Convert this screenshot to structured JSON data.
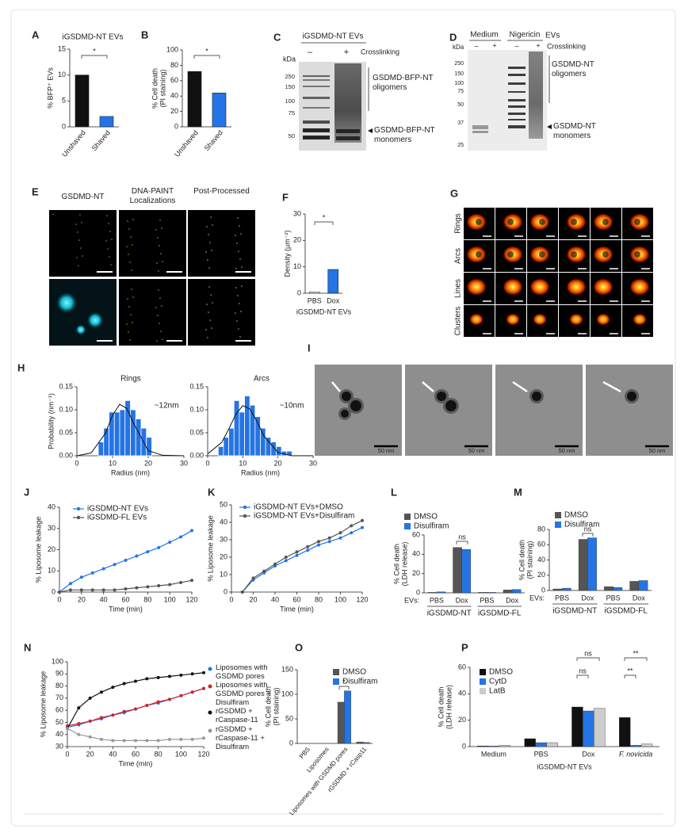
{
  "chart_data": [
    {
      "panel": "A",
      "type": "bar",
      "title": "iGSDMD-NT EVs",
      "ylabel": "% BFP⁺ EVs",
      "categories": [
        "Unshaved",
        "Shaved"
      ],
      "values": [
        10,
        2
      ],
      "colors": [
        "#111111",
        "#2474e5"
      ],
      "ylim": [
        0,
        15
      ],
      "yticks": [
        0,
        5,
        10,
        15
      ],
      "annotations": [
        "*"
      ]
    },
    {
      "panel": "B",
      "type": "bar",
      "ylabel": [
        "% Cell death",
        "(PI staining)"
      ],
      "categories": [
        "Unshaved",
        "Shaved"
      ],
      "values": [
        72,
        44
      ],
      "colors": [
        "#111111",
        "#2474e5"
      ],
      "ylim": [
        0,
        100
      ],
      "yticks": [
        0,
        20,
        40,
        60,
        80,
        100
      ],
      "annotations": [
        "*"
      ]
    },
    {
      "panel": "F",
      "type": "bar",
      "ylabel": "Density (µm⁻²)",
      "xlabel": "iGSDMD-NT EVs",
      "categories": [
        "PBS",
        "Dox"
      ],
      "values": [
        0.5,
        9
      ],
      "colors": [
        "#ffffff",
        "#2474e5"
      ],
      "ylim": [
        0,
        30
      ],
      "yticks": [
        0,
        10,
        20,
        30
      ],
      "annotations": [
        "*"
      ]
    },
    {
      "panel": "H",
      "type": "histogram",
      "title": "Rings",
      "ylabel": "Probability (nm⁻¹)",
      "xlabel": "Radius (nm)",
      "bins": [
        6,
        7.5,
        9,
        10.5,
        12,
        13.5,
        15,
        16.5,
        18,
        19.5,
        21
      ],
      "values": [
        0.03,
        0.06,
        0.095,
        0.095,
        0.1,
        0.12,
        0.1,
        0.08,
        0.06,
        0.04
      ],
      "color": "#2474e5",
      "fit": {
        "x": [
          0,
          4,
          8,
          10,
          12,
          14,
          16,
          20,
          24,
          30
        ],
        "values": [
          0,
          0.006,
          0.049,
          0.088,
          0.112,
          0.103,
          0.069,
          0.011,
          0.001,
          0
        ]
      },
      "xlim": [
        0,
        30
      ],
      "xticks": [
        0,
        10,
        20,
        30
      ],
      "ylim": [
        0,
        0.15
      ],
      "yticks": [
        {
          "value": 0,
          "label": "0.00"
        },
        {
          "value": 0.05,
          "label": "0.05"
        },
        {
          "value": 0.1,
          "label": "0.10"
        },
        {
          "value": 0.15,
          "label": "0.15"
        }
      ],
      "annotations": [
        "~12nm"
      ]
    },
    {
      "type": "histogram",
      "title": "Arcs",
      "xlabel": "Radius (nm)",
      "bins": [
        3,
        4.5,
        6,
        7.5,
        9,
        10.5,
        12,
        13.5,
        15,
        16.5,
        18,
        19.5,
        21,
        22.5,
        24
      ],
      "values": [
        0.02,
        0.04,
        0.06,
        0.12,
        0.095,
        0.13,
        0.11,
        0.085,
        0.06,
        0.04,
        0.03,
        0.02,
        0.01,
        0.01
      ],
      "color": "#2474e5",
      "fit": {
        "x": [
          0,
          4,
          6,
          8,
          10,
          12,
          14,
          16,
          20,
          24,
          30
        ],
        "values": [
          0.004,
          0.029,
          0.058,
          0.09,
          0.109,
          0.102,
          0.075,
          0.043,
          0.007,
          0,
          0
        ]
      },
      "xlim": [
        0,
        30
      ],
      "xticks": [
        0,
        10,
        20,
        30
      ],
      "ylim": [
        0,
        0.15
      ],
      "yticks": [
        {
          "value": 0,
          "label": "0.00"
        },
        {
          "value": 0.05,
          "label": "0.05"
        },
        {
          "value": 0.1,
          "label": "0.10"
        },
        {
          "value": 0.15,
          "label": "0.15"
        }
      ],
      "annotations": [
        "~10nm"
      ]
    },
    {
      "panel": "J",
      "type": "line",
      "ylabel": "% Liposome leakage",
      "xlabel": "Time (min)",
      "x": [
        0,
        10,
        20,
        30,
        40,
        50,
        60,
        70,
        80,
        90,
        100,
        110,
        120
      ],
      "series": [
        {
          "name": "iGSDMD-NT EVs",
          "color": "#2474e5",
          "values": [
            0,
            4,
            7,
            9,
            11,
            13,
            15,
            17,
            19,
            21,
            23.5,
            26,
            29
          ]
        },
        {
          "name": "iGSDMD-FL EVs",
          "color": "#555555",
          "values": [
            0,
            1,
            1,
            1,
            1,
            1,
            1.5,
            2,
            2.5,
            3,
            3.5,
            4.5,
            5.5
          ]
        }
      ],
      "xlim": [
        0,
        120
      ],
      "xticks": [
        0,
        20,
        40,
        60,
        80,
        100,
        120
      ],
      "ylim": [
        0,
        40
      ],
      "yticks": [
        0,
        10,
        20,
        30,
        40
      ]
    },
    {
      "panel": "K",
      "type": "line",
      "ylabel": "% Liposome leakage",
      "xlabel": "Time (min)",
      "x": [
        10,
        20,
        30,
        40,
        50,
        60,
        70,
        80,
        90,
        100,
        110,
        120
      ],
      "series": [
        {
          "name": "iGSDMD-NT EVs+DMSO",
          "color": "#2474e5",
          "values": [
            0,
            7,
            11,
            15,
            18,
            21,
            24,
            27,
            29,
            31,
            34,
            37
          ]
        },
        {
          "name": "iGSDMD-NT EVs+Disulfiram",
          "color": "#555555",
          "values": [
            0,
            8,
            12,
            16,
            20,
            23,
            26,
            29,
            31,
            34,
            38,
            41
          ]
        }
      ],
      "xlim": [
        0,
        120
      ],
      "xticks": [
        0,
        20,
        40,
        60,
        80,
        100,
        120
      ],
      "ylim": [
        0,
        50
      ],
      "yticks": [
        0,
        10,
        20,
        30,
        40,
        50
      ]
    },
    {
      "panel": "L",
      "type": "bar",
      "ylabel": [
        "% Cell death",
        "(LDH release)"
      ],
      "x_prefix": "EVs:",
      "categories": [
        "PBS",
        "Dox",
        "PBS",
        "Dox"
      ],
      "groups": [
        "iGSDMD-NT",
        "iGSDMD-FL"
      ],
      "series": [
        {
          "name": "DMSO",
          "color": "#555555",
          "values": [
            0.5,
            47,
            0.5,
            3
          ]
        },
        {
          "name": "Disulfiram",
          "color": "#2474e5",
          "values": [
            1,
            45,
            0.5,
            3.5
          ]
        }
      ],
      "ylim": [
        0,
        60
      ],
      "yticks": [
        0,
        20,
        40,
        60
      ],
      "annotations": [
        "ns"
      ]
    },
    {
      "panel": "M",
      "type": "bar",
      "ylabel": [
        "% Cell death",
        "(PI staining)"
      ],
      "x_prefix": "EVs:",
      "categories": [
        "PBS",
        "Dox",
        "PBS",
        "Dox"
      ],
      "groups": [
        "iGSDMD-NT",
        "iGSDMD-FL"
      ],
      "series": [
        {
          "name": "DMSO",
          "color": "#555555",
          "values": [
            2,
            67,
            5,
            12
          ]
        },
        {
          "name": "Disulfiram",
          "color": "#2474e5",
          "values": [
            3,
            69,
            4,
            13
          ]
        }
      ],
      "ylim": [
        0,
        80
      ],
      "yticks": [
        0,
        20,
        40,
        60,
        80
      ],
      "annotations": [
        "ns"
      ]
    },
    {
      "panel": "N",
      "type": "line",
      "ylabel": "% Liposome leakage",
      "xlabel": "Time (min)",
      "x": [
        0,
        10,
        20,
        30,
        40,
        50,
        60,
        70,
        80,
        90,
        100,
        110,
        120
      ],
      "series": [
        {
          "name": "Liposomes with GSDMD pores",
          "color": "#2474e5",
          "values": [
            46,
            48,
            51,
            53,
            56,
            58,
            61,
            64,
            66,
            69,
            72,
            75,
            78
          ]
        },
        {
          "name": "Liposomes with GSDMD pores + Disulfiram",
          "color": "#d0232a",
          "values": [
            47,
            49,
            51,
            54,
            56,
            59,
            61,
            64,
            67,
            69,
            72,
            75,
            78
          ]
        },
        {
          "name": "rGSDMD + rCaspase-11",
          "color": "#111111",
          "values": [
            45,
            62,
            70,
            75,
            79,
            82,
            84,
            86,
            87,
            88,
            89,
            90,
            91
          ]
        },
        {
          "name": "rGSDMD + rCaspase-11 + Disulfiram",
          "color": "#999999",
          "values": [
            45,
            40,
            38,
            36,
            35,
            35,
            35,
            35,
            35,
            36,
            36,
            36,
            37
          ]
        }
      ],
      "xlim": [
        0,
        120
      ],
      "xticks": [
        0,
        20,
        40,
        60,
        80,
        100,
        120
      ],
      "ylim": [
        30,
        100
      ],
      "yticks": [
        30,
        40,
        50,
        60,
        70,
        80,
        90,
        100
      ]
    },
    {
      "panel": "O",
      "type": "bar",
      "ylabel": [
        "% Cell death",
        "(PI staining)"
      ],
      "categories": [
        "PBS",
        "Liposomes",
        "Liposomes with GSDMD pores",
        "rGSDMD + rCasp11"
      ],
      "series": [
        {
          "name": "DMSO",
          "color": "#555555",
          "values": [
            0,
            0,
            84,
            3
          ]
        },
        {
          "name": "Disulfiram",
          "color": "#2474e5",
          "values": [
            0,
            0,
            107,
            2
          ]
        }
      ],
      "ylim": [
        0,
        150
      ],
      "yticks": [
        0,
        50,
        100,
        150
      ],
      "annotations": [
        "*"
      ]
    },
    {
      "panel": "P",
      "type": "bar",
      "ylabel": [
        "% Cell death",
        "(LDH release)"
      ],
      "xlabel": "iGSDMD-NT EVs",
      "categories": [
        "Medium",
        "PBS",
        "Dox",
        "F. novicida"
      ],
      "series": [
        {
          "name": "DMSO",
          "color": "#111111",
          "values": [
            0.5,
            6,
            30,
            22
          ]
        },
        {
          "name": "CytD",
          "color": "#2474e5",
          "values": [
            0.5,
            3,
            27,
            1
          ]
        },
        {
          "name": "LatB",
          "color": "#cccccc",
          "values": [
            1,
            3,
            29,
            2
          ]
        }
      ],
      "ylim": [
        0,
        60
      ],
      "yticks": [
        0,
        20,
        40,
        60
      ],
      "annotations": [
        "ns",
        "ns",
        "**",
        "**"
      ]
    }
  ],
  "panel_c": {
    "label": "C",
    "title": "iGSDMD-NT EVs",
    "kda": "kDa",
    "lanes": [
      "–",
      "+"
    ],
    "condition": "Crosslinking",
    "markers": [
      250,
      150,
      100,
      75,
      50
    ],
    "bands": [
      "GSDMD-BFP-NT oligomers",
      "GSDMD-BFP-NT monomers"
    ]
  },
  "panel_d": {
    "label": "D",
    "groups": [
      "Medium",
      "Nigericin"
    ],
    "suffix": "EVs",
    "kda": "kDa",
    "lanes": [
      "–",
      "+",
      "–",
      "+"
    ],
    "condition": "Crosslinking",
    "markers": [
      250,
      150,
      100,
      75,
      50,
      37,
      25
    ],
    "bands": [
      "GSDMD-NT oligomers",
      "GSDMD-NT monomers"
    ]
  },
  "panel_e": {
    "label": "E",
    "columns": [
      "GSDMD-NT",
      "DNA-PAINT Localizations",
      "Post-Processed"
    ]
  },
  "panel_g": {
    "label": "G",
    "rows": [
      "Rings",
      "Arcs",
      "Lines",
      "Clusters"
    ]
  },
  "panel_i": {
    "label": "I",
    "scale_bars": [
      "50 nm",
      "50 nm",
      "50 nm",
      "50 nm"
    ]
  }
}
